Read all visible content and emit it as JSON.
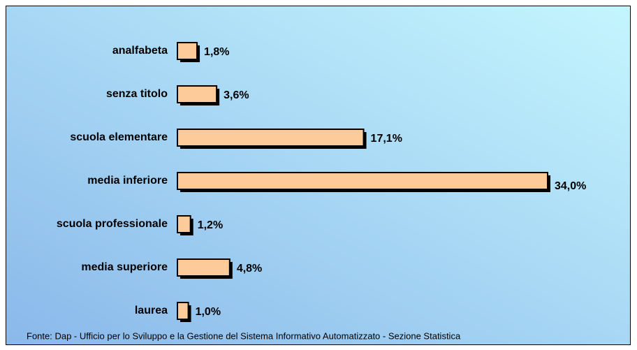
{
  "chart_data": {
    "type": "bar",
    "orientation": "horizontal",
    "categories": [
      "analfabeta",
      "senza titolo",
      "scuola elementare",
      "media inferiore",
      "scuola professionale",
      "media superiore",
      "laurea"
    ],
    "values": [
      1.8,
      3.6,
      17.1,
      34.0,
      1.2,
      4.8,
      1.0
    ],
    "value_labels": [
      "1,8%",
      "3,6%",
      "17,1%",
      "34,0%",
      "1,2%",
      "4,8%",
      "1,0%"
    ],
    "color": "#fdca9a",
    "source": "Fonte: Dap - Ufficio per lo Sviluppo e la Gestione del Sistema Informativo Automatizzato - Sezione Statistica"
  }
}
